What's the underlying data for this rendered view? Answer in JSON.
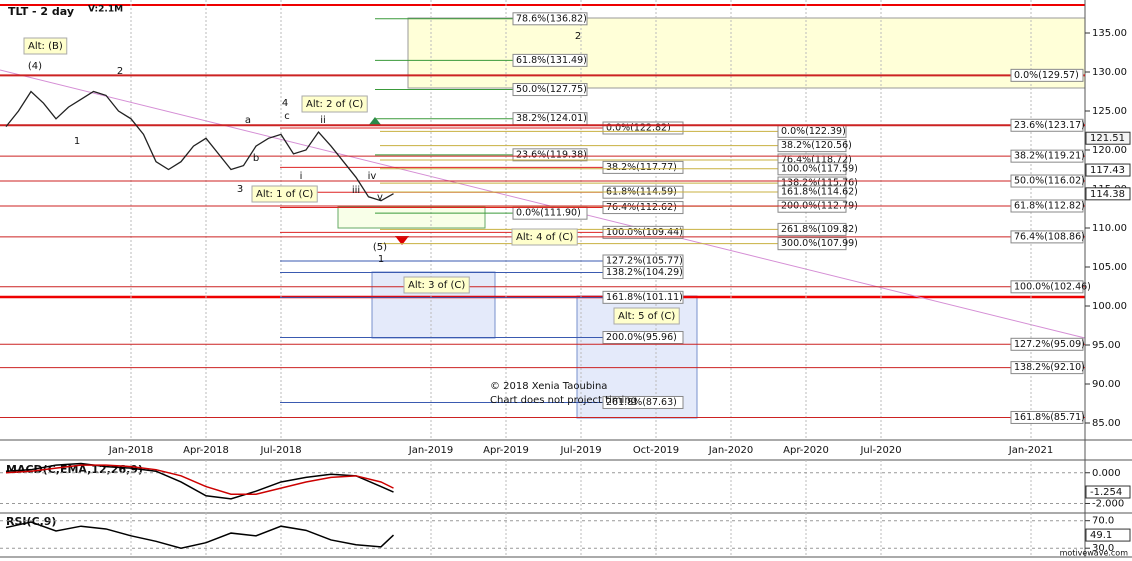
{
  "header": {
    "title": "TLT - 2 day",
    "volume": "V:2.1M"
  },
  "chart_data": [
    {
      "type": "line",
      "x": [
        -5,
        -4.5,
        -4,
        -3.5,
        -3,
        -2.5,
        -2,
        -1.5,
        -1,
        -0.5,
        0,
        0.5,
        1,
        1.5,
        2,
        2.5,
        3,
        3.5,
        4,
        4.5,
        5,
        5.5,
        6,
        6.5,
        7,
        7.5,
        8,
        8.5,
        9,
        9.5,
        10,
        10.5
      ],
      "series": [
        {
          "color": "#222222",
          "values": [
            123,
            125,
            127.5,
            126,
            124,
            125.5,
            126.5,
            127.5,
            127,
            125,
            124,
            122,
            118.5,
            117.5,
            118.5,
            120.5,
            121.5,
            119.5,
            117.5,
            118,
            120.5,
            121.5,
            122,
            119.5,
            120,
            122.3,
            120.5,
            118.5,
            116.5,
            114,
            113.5,
            114.4
          ]
        }
      ],
      "xlim": [
        -5.24,
        38.16
      ],
      "xticks": [
        {
          "value": 0,
          "label": "Jan-2018"
        },
        {
          "value": 3,
          "label": "Apr-2018"
        },
        {
          "value": 6,
          "label": "Jul-2018"
        },
        {
          "value": 12,
          "label": "Jan-2019"
        },
        {
          "value": 15,
          "label": "Apr-2019"
        },
        {
          "value": 18,
          "label": "Jul-2019"
        },
        {
          "value": 21,
          "label": "Oct-2019"
        },
        {
          "value": 24,
          "label": "Jan-2020"
        },
        {
          "value": 27,
          "label": "Apr-2020"
        },
        {
          "value": 30,
          "label": "Jul-2020"
        },
        {
          "value": 36,
          "label": "Jan-2021"
        }
      ],
      "ylim": [
        82.82,
        139.23
      ],
      "yticks": [
        {
          "value": 85,
          "label": "85.00"
        },
        {
          "value": 90,
          "label": "90.00"
        },
        {
          "value": 95,
          "label": "95.00"
        },
        {
          "value": 100,
          "label": "100.00"
        },
        {
          "value": 105,
          "label": "105.00"
        },
        {
          "value": 110,
          "label": "110.00"
        },
        {
          "value": 115,
          "label": "115.00"
        },
        {
          "value": 120,
          "label": "120.00"
        },
        {
          "value": 125,
          "label": "125.00"
        },
        {
          "value": 130,
          "label": "130.00"
        },
        {
          "value": 135,
          "label": "135.00"
        }
      ],
      "price_markers": [
        121.51,
        117.43,
        114.38
      ],
      "fib_levels": [
        [
          {
            "label": "78.6%(136.82)",
            "value": 136.82
          },
          {
            "label": "61.8%(131.49)",
            "value": 131.49
          },
          {
            "label": "50.0%(127.75)",
            "value": 127.75
          },
          {
            "label": "38.2%(124.01)",
            "value": 124.01
          },
          {
            "label": "23.6%(119.38)",
            "value": 119.38
          },
          {
            "label": "0.0%(111.90)",
            "value": 111.9
          }
        ],
        [
          {
            "label": "0.0%(122.82)",
            "value": 122.82
          },
          {
            "label": "38.2%(117.77)",
            "value": 117.77
          },
          {
            "label": "61.8%(114.59)",
            "value": 114.59
          },
          {
            "label": "76.4%(112.62)",
            "value": 112.62
          },
          {
            "label": "100.0%(109.44)",
            "value": 109.44
          },
          {
            "label": "127.2%(105.77)",
            "value": 105.77
          },
          {
            "label": "138.2%(104.29)",
            "value": 104.29
          },
          {
            "label": "161.8%(101.11)",
            "value": 101.11
          },
          {
            "label": "200.0%(95.96)",
            "value": 95.96
          },
          {
            "label": "261.8%(87.63)",
            "value": 87.63
          }
        ],
        [
          {
            "label": "0.0%(122.39)",
            "value": 122.39
          },
          {
            "label": "38.2%(120.56)",
            "value": 120.56
          },
          {
            "label": "76.4%(118.72)",
            "value": 118.72
          },
          {
            "label": "100.0%(117.59)",
            "value": 117.59
          },
          {
            "label": "138.2%(115.76)",
            "value": 115.76
          },
          {
            "label": "161.8%(114.62)",
            "value": 114.62
          },
          {
            "label": "200.0%(112.79)",
            "value": 112.79
          },
          {
            "label": "261.8%(109.82)",
            "value": 109.82
          },
          {
            "label": "300.0%(107.99)",
            "value": 107.99
          }
        ],
        [
          {
            "label": "0.0%(129.57)",
            "value": 129.57
          },
          {
            "label": "23.6%(123.17)",
            "value": 123.17
          },
          {
            "label": "38.2%(119.21)",
            "value": 119.21
          },
          {
            "label": "50.0%(116.02)",
            "value": 116.02
          },
          {
            "label": "61.8%(112.82)",
            "value": 112.82
          },
          {
            "label": "76.4%(108.86)",
            "value": 108.86
          },
          {
            "label": "100.0%(102.46)",
            "value": 102.46
          },
          {
            "label": "127.2%(95.09)",
            "value": 95.09
          },
          {
            "label": "138.2%(92.10)",
            "value": 92.1
          },
          {
            "label": "161.8%(85.71)",
            "value": 85.71
          }
        ]
      ],
      "annotations": [
        "Alt: (B)",
        "Alt: 2 of (C)",
        "Alt: 1 of (C)",
        "Alt: 4 of (C)",
        "Alt: 3 of (C)",
        "Alt: 5 of (C)"
      ],
      "wave_labels": [
        "(4)",
        "2",
        "1",
        "3",
        "4",
        "a",
        "b",
        "c",
        "i",
        "ii",
        "iii",
        "iv",
        "v",
        "(5)",
        "1",
        "2"
      ],
      "notes": [
        "© 2018 Xenia Taoubina",
        "Chart does not project timing"
      ]
    },
    {
      "type": "line",
      "title": "MACD(C,EMA,12,26,9)",
      "x": [
        -5,
        -4,
        -3,
        -2,
        -1,
        0,
        1,
        2,
        3,
        4,
        5,
        6,
        7,
        8,
        9,
        10,
        10.5
      ],
      "series": [
        {
          "color": "#000000",
          "values": [
            0.1,
            0.2,
            0.5,
            0.6,
            0.4,
            0.3,
            0.1,
            -0.6,
            -1.5,
            -1.7,
            -1.2,
            -0.6,
            -0.3,
            -0.1,
            -0.2,
            -0.9,
            -1.254
          ]
        },
        {
          "color": "#cc0000",
          "values": [
            0.0,
            0.1,
            0.3,
            0.5,
            0.5,
            0.4,
            0.2,
            -0.2,
            -0.9,
            -1.4,
            -1.4,
            -1.0,
            -0.6,
            -0.3,
            -0.2,
            -0.6,
            -1.0
          ]
        }
      ],
      "ylim": [
        -2.62,
        0.83
      ],
      "yticks": [
        {
          "value": 0,
          "label": "0.000"
        },
        {
          "value": -2,
          "label": "-2.000"
        }
      ],
      "current": -1.254
    },
    {
      "type": "line",
      "title": "RSI(C,9)",
      "x": [
        -5,
        -4,
        -3,
        -2,
        -1,
        0,
        1,
        2,
        3,
        4,
        5,
        6,
        7,
        8,
        9,
        10,
        10.5
      ],
      "series": [
        {
          "color": "#000000",
          "values": [
            60,
            68,
            55,
            62,
            58,
            48,
            40,
            30,
            38,
            52,
            48,
            62,
            56,
            42,
            35,
            32,
            49.1
          ]
        }
      ],
      "ylim": [
        17.2,
        81.2
      ],
      "yticks": [
        {
          "value": 70,
          "label": "70.0"
        },
        {
          "value": 30,
          "label": "30.0"
        }
      ],
      "current": 49.1
    }
  ],
  "footer": "motivewave.com"
}
